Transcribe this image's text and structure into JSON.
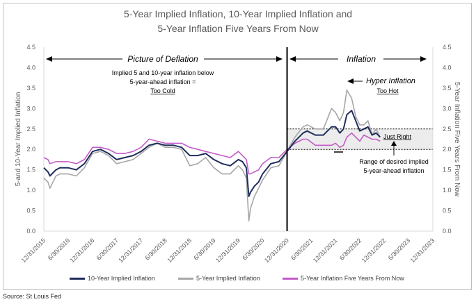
{
  "title_line1": "5-Year Implied Inflation, 10-Year Implied Inflation and",
  "title_line2": "5-Year Inflation Five Years From Now",
  "source": "Source: St Louis Fed",
  "colors": {
    "ten_year": "#1f2d5c",
    "five_year": "#a6a6a6",
    "fwd": "#c25bc8",
    "band": "#ececec"
  },
  "chart_data": {
    "type": "line",
    "ylabel": "5-and 10-Year Implied Inflation",
    "y2label": "5-Year Inflation Five Years From Now",
    "ylim": [
      0,
      4.5
    ],
    "y2lim": [
      0,
      4.5
    ],
    "yticks": [
      "0.0",
      "0.5",
      "1.0",
      "1.5",
      "2.0",
      "2.5",
      "3.0",
      "3.5",
      "4.0",
      "4.5"
    ],
    "xlim": [
      "2015-12-31",
      "2023-12-31"
    ],
    "xticks": [
      "12/31/2015",
      "6/30/2016",
      "12/31/2016",
      "6/30/2017",
      "12/31/2017",
      "6/30/2018",
      "12/31/2018",
      "6/30/2019",
      "12/31/2019",
      "6/30/2020",
      "12/31/2020",
      "6/30/2021",
      "12/31/2021",
      "6/30/2022",
      "12/31/2022",
      "6/30/2023",
      "12/31/2023"
    ],
    "grid": false,
    "legend_position": "bottom",
    "vertical_line_date": "2020-12-31",
    "target_band": [
      2.0,
      2.5
    ],
    "x": [
      "2015-12-31",
      "2016-01-31",
      "2016-02-15",
      "2016-03-31",
      "2016-04-30",
      "2016-06-30",
      "2016-08-31",
      "2016-10-31",
      "2016-12-31",
      "2017-02-28",
      "2017-04-30",
      "2017-06-30",
      "2017-08-31",
      "2017-10-31",
      "2017-12-31",
      "2018-02-28",
      "2018-04-30",
      "2018-06-30",
      "2018-08-31",
      "2018-10-31",
      "2018-12-31",
      "2019-02-28",
      "2019-04-30",
      "2019-06-30",
      "2019-08-31",
      "2019-10-31",
      "2019-12-31",
      "2020-01-31",
      "2020-02-29",
      "2020-03-19",
      "2020-03-31",
      "2020-04-30",
      "2020-05-31",
      "2020-06-30",
      "2020-08-31",
      "2020-10-31",
      "2020-12-31",
      "2021-02-28",
      "2021-04-30",
      "2021-05-31",
      "2021-07-31",
      "2021-09-30",
      "2021-11-30",
      "2021-12-31",
      "2022-01-31",
      "2022-02-28",
      "2022-03-25",
      "2022-04-30",
      "2022-05-31",
      "2022-06-30",
      "2022-07-31",
      "2022-08-31",
      "2022-09-30",
      "2022-10-31",
      "2022-11-30"
    ],
    "series": [
      {
        "name": "10-Year Implied Inflation",
        "values": [
          1.55,
          1.45,
          1.35,
          1.5,
          1.55,
          1.55,
          1.5,
          1.65,
          1.95,
          2.0,
          1.9,
          1.75,
          1.8,
          1.85,
          1.95,
          2.1,
          2.15,
          2.1,
          2.1,
          2.05,
          1.85,
          1.85,
          1.9,
          1.75,
          1.65,
          1.6,
          1.75,
          1.7,
          1.55,
          0.85,
          0.95,
          1.1,
          1.2,
          1.4,
          1.65,
          1.7,
          1.95,
          2.2,
          2.4,
          2.45,
          2.35,
          2.35,
          2.55,
          2.55,
          2.4,
          2.5,
          2.85,
          2.95,
          2.7,
          2.45,
          2.5,
          2.55,
          2.35,
          2.4,
          2.3
        ]
      },
      {
        "name": "5-Year Implied Inflation",
        "values": [
          1.3,
          1.2,
          1.05,
          1.35,
          1.4,
          1.4,
          1.35,
          1.55,
          1.9,
          1.95,
          1.85,
          1.65,
          1.7,
          1.75,
          1.9,
          2.05,
          2.15,
          2.05,
          2.05,
          2.0,
          1.6,
          1.65,
          1.8,
          1.55,
          1.4,
          1.4,
          1.6,
          1.5,
          1.3,
          0.25,
          0.55,
          0.85,
          1.05,
          1.25,
          1.55,
          1.6,
          1.95,
          2.3,
          2.55,
          2.6,
          2.5,
          2.5,
          3.0,
          2.9,
          2.7,
          2.9,
          3.45,
          3.25,
          2.8,
          2.6,
          2.6,
          2.7,
          2.35,
          2.5,
          2.3
        ]
      },
      {
        "name": "5-Year Inflation Five Years From Now",
        "values": [
          1.8,
          1.75,
          1.65,
          1.7,
          1.7,
          1.7,
          1.65,
          1.75,
          2.05,
          2.05,
          2.0,
          1.9,
          1.9,
          1.95,
          2.05,
          2.25,
          2.2,
          2.15,
          2.15,
          2.15,
          2.05,
          2.0,
          1.95,
          1.9,
          1.85,
          1.8,
          1.95,
          1.85,
          1.75,
          1.4,
          1.4,
          1.45,
          1.5,
          1.65,
          1.8,
          1.8,
          2.0,
          2.15,
          2.25,
          2.25,
          2.1,
          2.1,
          2.1,
          2.15,
          2.05,
          2.1,
          2.3,
          2.4,
          2.3,
          2.2,
          2.35,
          2.3,
          2.25,
          2.25,
          2.2
        ]
      }
    ],
    "annotations": {
      "deflation_label": "Picture of Deflation",
      "inflation_label": "Inflation",
      "deflation_note_1": "Implied 5 and 10-year inflation below",
      "deflation_note_2": "5-year-ahead inflation =",
      "deflation_note_3": "Too Cold",
      "hyper_label": "Hyper Inflation",
      "too_hot": "Too Hot",
      "just_right": "Just Right",
      "range_note_1": "Range of desired implied",
      "range_note_2": "5-year-ahead inflation"
    }
  }
}
